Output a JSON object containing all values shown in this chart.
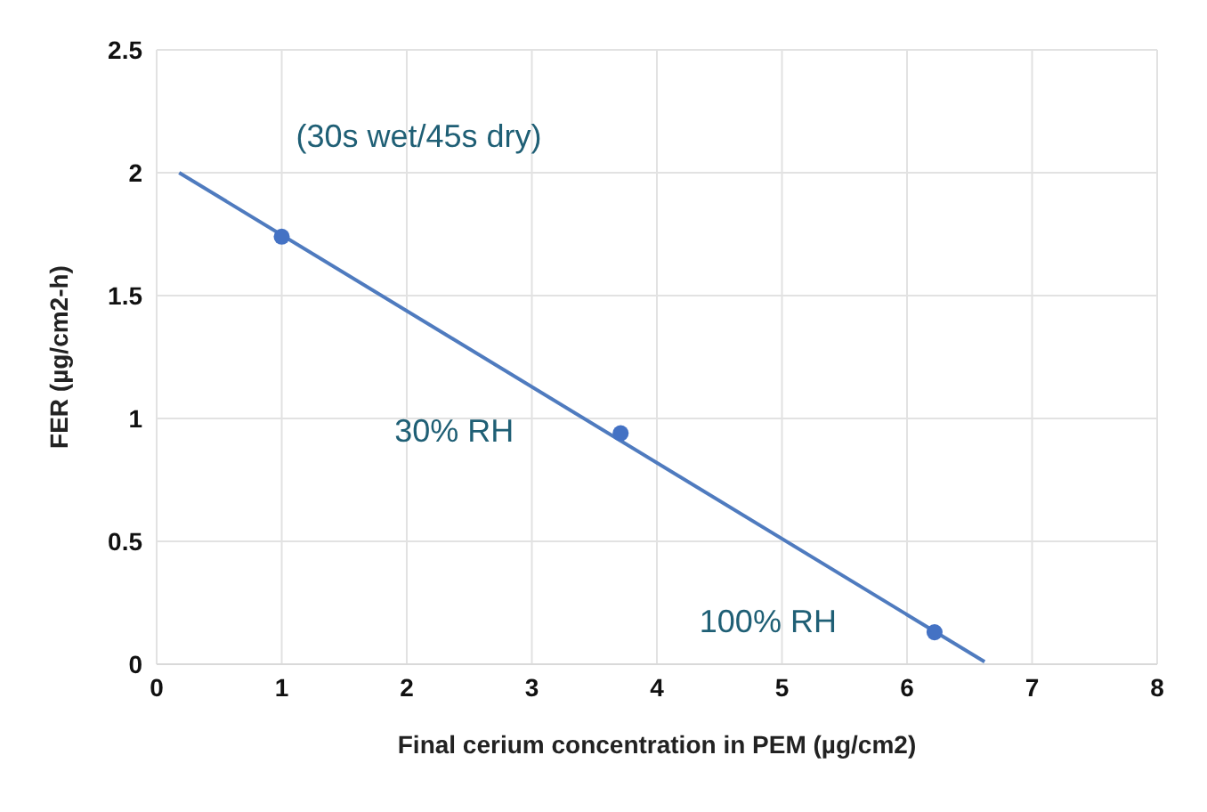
{
  "chart_data": {
    "type": "scatter",
    "xlabel": "Final cerium concentration in PEM (µg/cm2)",
    "ylabel": "FER (µg/cm2-h)",
    "xlim": [
      0,
      8
    ],
    "xticks": [
      0,
      1,
      2,
      3,
      4,
      5,
      6,
      7,
      8
    ],
    "ylim": [
      0,
      2.5
    ],
    "yticks": [
      0,
      0.5,
      1,
      1.5,
      2,
      2.5
    ],
    "grid": true,
    "series": [
      {
        "color": "#4472c4",
        "marker": "circle",
        "x": [
          1,
          3.71,
          6.22
        ],
        "values": [
          1.74,
          0.94,
          0.13
        ]
      },
      {
        "type": "line",
        "marker": "none",
        "color": "#4f7bbf",
        "x": [
          0.18,
          6.62
        ],
        "values": [
          2.0,
          0.01
        ]
      }
    ],
    "annotations": [
      "(30s wet/45s dry)",
      "30% RH",
      "100% RH"
    ]
  }
}
